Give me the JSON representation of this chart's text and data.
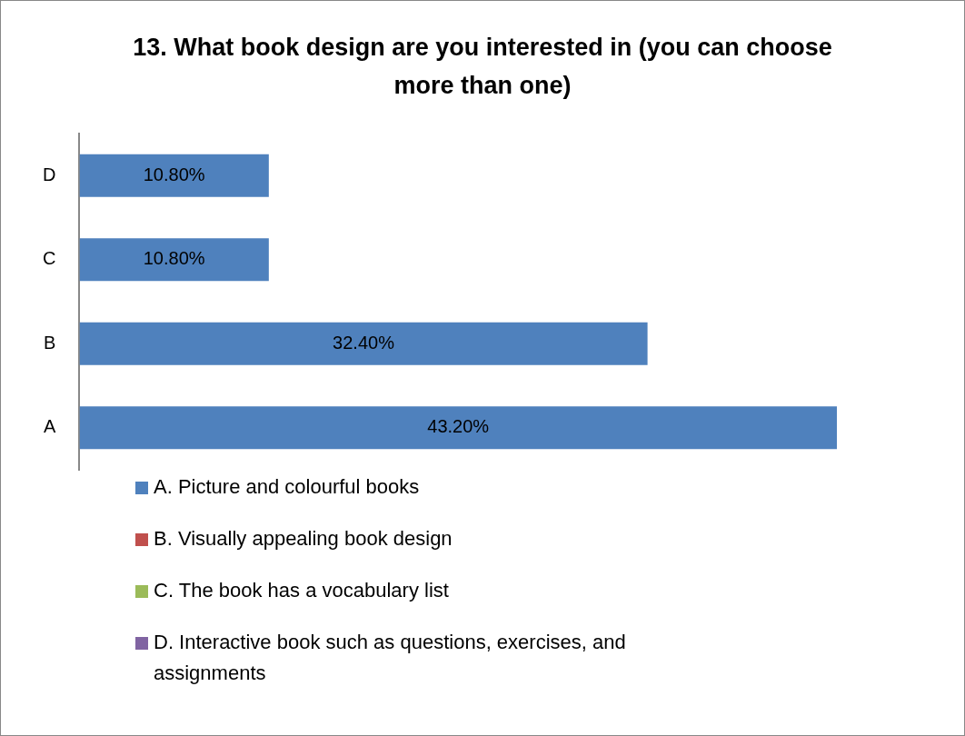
{
  "chart_data": {
    "type": "bar",
    "orientation": "horizontal",
    "title": "13. What book design are you interested in (you can choose more than one)",
    "categories": [
      "D",
      "C",
      "B",
      "A"
    ],
    "values": [
      10.8,
      10.8,
      32.4,
      43.2
    ],
    "value_labels": [
      "10.80%",
      "10.80%",
      "32.40%",
      "43.20%"
    ],
    "color": "#4f81bd",
    "annotations": [
      "A. Picture and colourful books",
      "B. Visually appealing book design",
      "C. The book has a vocabulary list",
      "D. Interactive book such as questions, exercises, and assignments"
    ]
  }
}
